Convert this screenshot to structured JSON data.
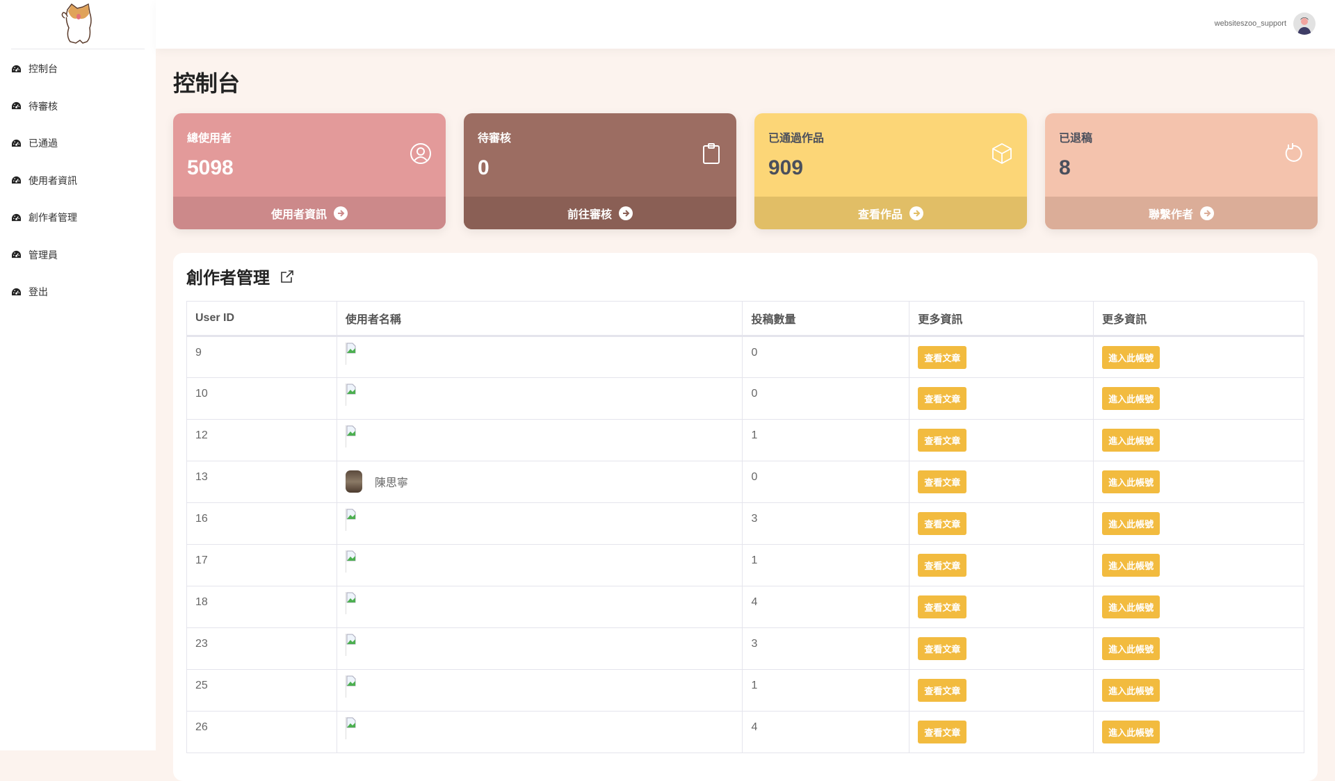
{
  "sidebar": {
    "items": [
      {
        "label": "控制台"
      },
      {
        "label": "待審核"
      },
      {
        "label": "已通過"
      },
      {
        "label": "使用者資訊"
      },
      {
        "label": "創作者管理"
      },
      {
        "label": "管理員"
      },
      {
        "label": "登出"
      }
    ]
  },
  "header": {
    "username": "websiteszoo_support"
  },
  "page_title": "控制台",
  "cards": [
    {
      "label": "總使用者",
      "value": "5098",
      "footer": "使用者資訊",
      "icon": "user-circle-icon",
      "color": "#e39a9a",
      "foot_color": "#cc898a",
      "text_color": "#ffffff"
    },
    {
      "label": "待審核",
      "value": "0",
      "footer": "前往審核",
      "icon": "clipboard-icon",
      "color": "#9c6d62",
      "foot_color": "#8a5f55",
      "text_color": "#ffffff"
    },
    {
      "label": "已通過作品",
      "value": "909",
      "footer": "查看作品",
      "icon": "box-icon",
      "color": "#fcd677",
      "foot_color": "#e1be66",
      "text_color": "#4a4f5c"
    },
    {
      "label": "已退稿",
      "value": "8",
      "footer": "聯繫作者",
      "icon": "refresh-icon",
      "color": "#f4c3ad",
      "foot_color": "#dbad98",
      "text_color": "#4a4f5c"
    }
  ],
  "panel": {
    "title": "創作者管理",
    "columns": [
      "User ID",
      "使用者名稱",
      "投稿數量",
      "更多資訊",
      "更多資訊"
    ],
    "button_articles": "查看文章",
    "button_login": "進入此帳號",
    "rows": [
      {
        "id": "9",
        "name": "",
        "count": "0"
      },
      {
        "id": "10",
        "name": "",
        "count": "0"
      },
      {
        "id": "12",
        "name": "",
        "count": "1"
      },
      {
        "id": "13",
        "name": "陳思寧",
        "count": "0"
      },
      {
        "id": "16",
        "name": "",
        "count": "3"
      },
      {
        "id": "17",
        "name": "",
        "count": "1"
      },
      {
        "id": "18",
        "name": "",
        "count": "4"
      },
      {
        "id": "23",
        "name": "",
        "count": "3"
      },
      {
        "id": "25",
        "name": "",
        "count": "1"
      },
      {
        "id": "26",
        "name": "",
        "count": "4"
      }
    ]
  }
}
